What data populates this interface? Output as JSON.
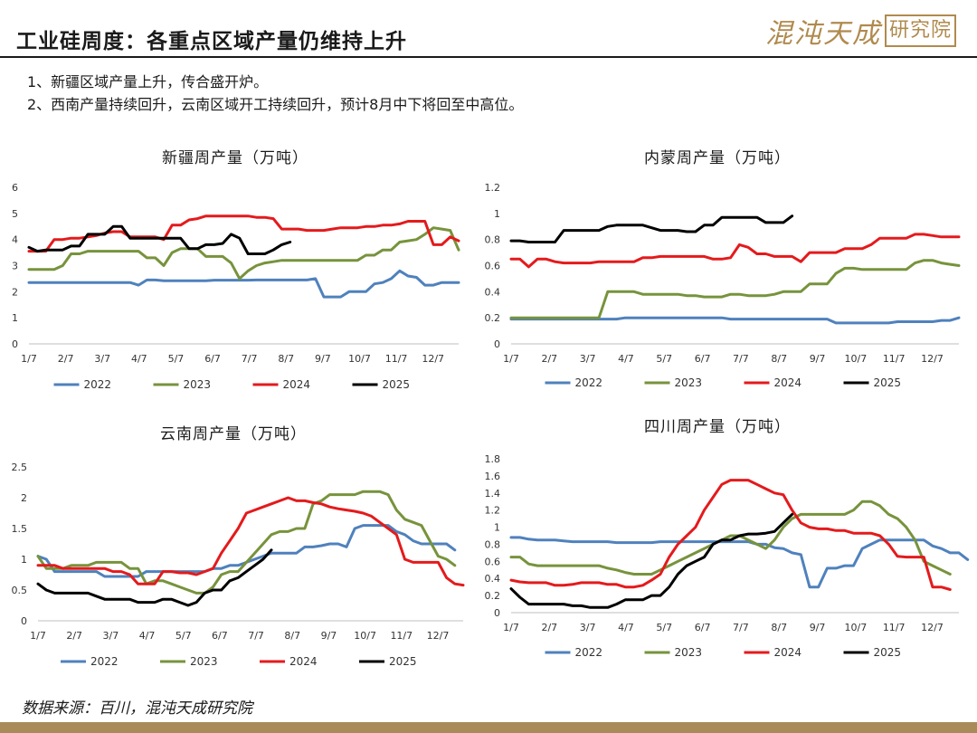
{
  "header": {
    "title": "工业硅周度：各重点区域产量仍维持上升",
    "logo_text": "混沌天成",
    "logo_seal": "研究院"
  },
  "bullets": [
    "1、新疆区域产量上升，传合盛开炉。",
    "2、西南产量持续回升，云南区域开工持续回升，预计8月中下将回至中高位。"
  ],
  "source": "数据来源：百川，混沌天成研究院",
  "colors": {
    "2022": "#4f81bd",
    "2023": "#77933c",
    "2024": "#e41a1c",
    "2025": "#000000"
  },
  "chart_data": [
    {
      "type": "line",
      "title": "新疆周产量（万吨）",
      "x_ticks": [
        "1/7",
        "2/7",
        "3/7",
        "4/7",
        "5/7",
        "6/7",
        "7/7",
        "8/7",
        "9/7",
        "10/7",
        "11/7",
        "12/7"
      ],
      "ylim": [
        0,
        6
      ],
      "y_ticks": [
        "0",
        "1",
        "2",
        "3",
        "4",
        "5",
        "6"
      ],
      "weeks": 52,
      "legend": "bottom",
      "series": [
        {
          "name": "2022",
          "values": [
            2.35,
            2.35,
            2.35,
            2.35,
            2.35,
            2.35,
            2.35,
            2.35,
            2.35,
            2.35,
            2.35,
            2.35,
            2.35,
            2.25,
            2.45,
            2.45,
            2.42,
            2.42,
            2.42,
            2.42,
            2.42,
            2.42,
            2.44,
            2.44,
            2.44,
            2.44,
            2.44,
            2.45,
            2.45,
            2.45,
            2.45,
            2.45,
            2.45,
            2.45,
            2.5,
            1.8,
            1.8,
            1.8,
            2.0,
            2.0,
            2.0,
            2.3,
            2.35,
            2.5,
            2.8,
            2.6,
            2.55,
            2.25,
            2.25,
            2.35,
            2.35,
            2.35
          ]
        },
        {
          "name": "2023",
          "values": [
            2.85,
            2.85,
            2.85,
            2.85,
            3.0,
            3.45,
            3.45,
            3.55,
            3.55,
            3.55,
            3.55,
            3.55,
            3.55,
            3.55,
            3.3,
            3.3,
            3.0,
            3.5,
            3.65,
            3.65,
            3.65,
            3.35,
            3.35,
            3.35,
            3.1,
            2.5,
            2.8,
            3.0,
            3.1,
            3.15,
            3.2,
            3.2,
            3.2,
            3.2,
            3.2,
            3.2,
            3.2,
            3.2,
            3.2,
            3.2,
            3.4,
            3.4,
            3.6,
            3.6,
            3.9,
            3.95,
            4.0,
            4.2,
            4.45,
            4.4,
            4.35,
            3.6
          ]
        },
        {
          "name": "2024",
          "values": [
            3.55,
            3.55,
            3.55,
            4.0,
            4.0,
            4.05,
            4.05,
            4.1,
            4.15,
            4.25,
            4.3,
            4.3,
            4.1,
            4.1,
            4.1,
            4.1,
            4.0,
            4.55,
            4.55,
            4.75,
            4.8,
            4.9,
            4.9,
            4.9,
            4.9,
            4.9,
            4.9,
            4.85,
            4.85,
            4.8,
            4.4,
            4.4,
            4.4,
            4.35,
            4.35,
            4.35,
            4.4,
            4.45,
            4.45,
            4.45,
            4.5,
            4.5,
            4.55,
            4.55,
            4.6,
            4.7,
            4.7,
            4.7,
            3.8,
            3.8,
            4.1,
            3.95
          ]
        },
        {
          "name": "2025",
          "values": [
            3.7,
            3.55,
            3.6,
            3.6,
            3.6,
            3.75,
            3.75,
            4.2,
            4.2,
            4.2,
            4.5,
            4.5,
            4.05,
            4.05,
            4.05,
            4.05,
            4.05,
            4.05,
            4.05,
            3.65,
            3.65,
            3.8,
            3.8,
            3.85,
            4.2,
            4.05,
            3.45,
            3.45,
            3.45,
            3.6,
            3.8,
            3.9
          ]
        }
      ]
    },
    {
      "type": "line",
      "title": "内蒙周产量（万吨）",
      "x_ticks": [
        "1/7",
        "2/7",
        "3/7",
        "4/7",
        "5/7",
        "6/7",
        "7/7",
        "8/7",
        "9/7",
        "10/7",
        "11/7",
        "12/7"
      ],
      "ylim": [
        0,
        1.2
      ],
      "y_ticks": [
        "0",
        "0.2",
        "0.4",
        "0.6",
        "0.8",
        "1",
        "1.2"
      ],
      "weeks": 52,
      "legend": "bottom",
      "series": [
        {
          "name": "2022",
          "values": [
            0.19,
            0.19,
            0.19,
            0.19,
            0.19,
            0.19,
            0.19,
            0.19,
            0.19,
            0.19,
            0.19,
            0.19,
            0.19,
            0.2,
            0.2,
            0.2,
            0.2,
            0.2,
            0.2,
            0.2,
            0.2,
            0.2,
            0.2,
            0.2,
            0.2,
            0.19,
            0.19,
            0.19,
            0.19,
            0.19,
            0.19,
            0.19,
            0.19,
            0.19,
            0.19,
            0.19,
            0.19,
            0.16,
            0.16,
            0.16,
            0.16,
            0.16,
            0.16,
            0.16,
            0.17,
            0.17,
            0.17,
            0.17,
            0.17,
            0.18,
            0.18,
            0.2
          ]
        },
        {
          "name": "2023",
          "values": [
            0.2,
            0.2,
            0.2,
            0.2,
            0.2,
            0.2,
            0.2,
            0.2,
            0.2,
            0.2,
            0.2,
            0.4,
            0.4,
            0.4,
            0.4,
            0.38,
            0.38,
            0.38,
            0.38,
            0.38,
            0.37,
            0.37,
            0.36,
            0.36,
            0.36,
            0.38,
            0.38,
            0.37,
            0.37,
            0.37,
            0.38,
            0.4,
            0.4,
            0.4,
            0.46,
            0.46,
            0.46,
            0.54,
            0.58,
            0.58,
            0.57,
            0.57,
            0.57,
            0.57,
            0.57,
            0.57,
            0.62,
            0.64,
            0.64,
            0.62,
            0.61,
            0.6
          ]
        },
        {
          "name": "2024",
          "values": [
            0.65,
            0.65,
            0.59,
            0.65,
            0.65,
            0.63,
            0.62,
            0.62,
            0.62,
            0.62,
            0.63,
            0.63,
            0.63,
            0.63,
            0.63,
            0.66,
            0.66,
            0.67,
            0.67,
            0.67,
            0.67,
            0.67,
            0.67,
            0.65,
            0.65,
            0.66,
            0.76,
            0.74,
            0.69,
            0.69,
            0.67,
            0.67,
            0.67,
            0.63,
            0.7,
            0.7,
            0.7,
            0.7,
            0.73,
            0.73,
            0.73,
            0.76,
            0.81,
            0.81,
            0.81,
            0.81,
            0.84,
            0.84,
            0.83,
            0.82,
            0.82,
            0.82
          ]
        },
        {
          "name": "2025",
          "values": [
            0.79,
            0.79,
            0.78,
            0.78,
            0.78,
            0.78,
            0.87,
            0.87,
            0.87,
            0.87,
            0.87,
            0.9,
            0.91,
            0.91,
            0.91,
            0.91,
            0.89,
            0.87,
            0.87,
            0.87,
            0.86,
            0.86,
            0.91,
            0.91,
            0.97,
            0.97,
            0.97,
            0.97,
            0.97,
            0.93,
            0.93,
            0.93,
            0.98
          ]
        }
      ]
    },
    {
      "type": "line",
      "title": "云南周产量（万吨）",
      "x_ticks": [
        "1/7",
        "2/7",
        "3/7",
        "4/7",
        "5/7",
        "6/7",
        "7/7",
        "8/7",
        "9/7",
        "10/7",
        "11/7",
        "12/7"
      ],
      "ylim": [
        0,
        2.5
      ],
      "y_ticks": [
        "0",
        "0.5",
        "1",
        "1.5",
        "2",
        "2.5"
      ],
      "weeks": 52,
      "legend": "bottom",
      "series": [
        {
          "name": "2022",
          "values": [
            1.05,
            1.0,
            0.8,
            0.8,
            0.8,
            0.8,
            0.8,
            0.8,
            0.72,
            0.72,
            0.72,
            0.72,
            0.72,
            0.8,
            0.8,
            0.8,
            0.8,
            0.8,
            0.8,
            0.8,
            0.8,
            0.85,
            0.85,
            0.9,
            0.9,
            0.95,
            1.0,
            1.05,
            1.1,
            1.1,
            1.1,
            1.1,
            1.2,
            1.2,
            1.22,
            1.25,
            1.25,
            1.2,
            1.5,
            1.55,
            1.55,
            1.55,
            1.55,
            1.45,
            1.4,
            1.3,
            1.25,
            1.25,
            1.25,
            1.25,
            1.15
          ]
        },
        {
          "name": "2023",
          "values": [
            1.05,
            0.85,
            0.85,
            0.85,
            0.9,
            0.9,
            0.9,
            0.95,
            0.95,
            0.95,
            0.95,
            0.85,
            0.85,
            0.6,
            0.65,
            0.65,
            0.6,
            0.55,
            0.5,
            0.45,
            0.45,
            0.55,
            0.75,
            0.8,
            0.8,
            0.95,
            1.1,
            1.25,
            1.4,
            1.45,
            1.45,
            1.5,
            1.5,
            1.9,
            1.95,
            2.05,
            2.05,
            2.05,
            2.05,
            2.1,
            2.1,
            2.1,
            2.05,
            1.8,
            1.65,
            1.6,
            1.55,
            1.3,
            1.05,
            1.0,
            0.9
          ]
        },
        {
          "name": "2024",
          "values": [
            0.9,
            0.9,
            0.9,
            0.85,
            0.85,
            0.85,
            0.85,
            0.85,
            0.85,
            0.8,
            0.8,
            0.75,
            0.6,
            0.6,
            0.6,
            0.8,
            0.8,
            0.78,
            0.78,
            0.75,
            0.8,
            0.85,
            1.1,
            1.3,
            1.5,
            1.75,
            1.8,
            1.85,
            1.9,
            1.95,
            2.0,
            1.95,
            1.95,
            1.92,
            1.9,
            1.85,
            1.82,
            1.8,
            1.78,
            1.75,
            1.7,
            1.6,
            1.5,
            1.4,
            1.0,
            0.95,
            0.95,
            0.95,
            0.95,
            0.7,
            0.6,
            0.58
          ]
        },
        {
          "name": "2025",
          "values": [
            0.6,
            0.5,
            0.45,
            0.45,
            0.45,
            0.45,
            0.45,
            0.4,
            0.35,
            0.35,
            0.35,
            0.35,
            0.3,
            0.3,
            0.3,
            0.35,
            0.35,
            0.3,
            0.25,
            0.3,
            0.45,
            0.5,
            0.5,
            0.65,
            0.7,
            0.8,
            0.9,
            1.0,
            1.15
          ]
        }
      ]
    },
    {
      "type": "line",
      "title": "四川周产量（万吨）",
      "x_ticks": [
        "1/7",
        "2/7",
        "3/7",
        "4/7",
        "5/7",
        "6/7",
        "7/7",
        "8/7",
        "9/7",
        "10/7",
        "11/7",
        "12/7"
      ],
      "ylim": [
        0,
        1.8
      ],
      "y_ticks": [
        "0",
        "0.2",
        "0.4",
        "0.6",
        "0.8",
        "1",
        "1.2",
        "1.4",
        "1.6",
        "1.8"
      ],
      "weeks": 52,
      "legend": "bottom",
      "series": [
        {
          "name": "2022",
          "values": [
            0.88,
            0.88,
            0.86,
            0.85,
            0.85,
            0.85,
            0.84,
            0.83,
            0.83,
            0.83,
            0.83,
            0.83,
            0.82,
            0.82,
            0.82,
            0.82,
            0.82,
            0.83,
            0.83,
            0.83,
            0.83,
            0.83,
            0.83,
            0.83,
            0.83,
            0.83,
            0.83,
            0.83,
            0.8,
            0.8,
            0.76,
            0.75,
            0.7,
            0.68,
            0.3,
            0.3,
            0.52,
            0.52,
            0.55,
            0.55,
            0.75,
            0.8,
            0.85,
            0.85,
            0.85,
            0.85,
            0.85,
            0.85,
            0.78,
            0.75,
            0.7,
            0.7,
            0.62
          ]
        },
        {
          "name": "2023",
          "values": [
            0.65,
            0.65,
            0.57,
            0.55,
            0.55,
            0.55,
            0.55,
            0.55,
            0.55,
            0.55,
            0.55,
            0.52,
            0.5,
            0.47,
            0.45,
            0.45,
            0.45,
            0.5,
            0.55,
            0.6,
            0.65,
            0.7,
            0.75,
            0.8,
            0.85,
            0.9,
            0.9,
            0.85,
            0.8,
            0.75,
            0.85,
            1.0,
            1.1,
            1.15,
            1.15,
            1.15,
            1.15,
            1.15,
            1.15,
            1.2,
            1.3,
            1.3,
            1.25,
            1.15,
            1.1,
            1.0,
            0.85,
            0.6,
            0.55,
            0.5,
            0.45
          ]
        },
        {
          "name": "2024",
          "values": [
            0.38,
            0.36,
            0.35,
            0.35,
            0.35,
            0.32,
            0.32,
            0.33,
            0.35,
            0.35,
            0.35,
            0.33,
            0.33,
            0.3,
            0.3,
            0.32,
            0.38,
            0.45,
            0.65,
            0.8,
            0.9,
            1.0,
            1.2,
            1.35,
            1.5,
            1.55,
            1.55,
            1.55,
            1.5,
            1.45,
            1.4,
            1.38,
            1.2,
            1.05,
            1.0,
            0.98,
            0.98,
            0.96,
            0.96,
            0.93,
            0.93,
            0.93,
            0.9,
            0.8,
            0.66,
            0.65,
            0.65,
            0.65,
            0.3,
            0.3,
            0.27
          ]
        },
        {
          "name": "2025",
          "values": [
            0.28,
            0.18,
            0.1,
            0.1,
            0.1,
            0.1,
            0.1,
            0.08,
            0.08,
            0.06,
            0.06,
            0.06,
            0.1,
            0.15,
            0.15,
            0.15,
            0.2,
            0.2,
            0.3,
            0.45,
            0.55,
            0.6,
            0.65,
            0.8,
            0.85,
            0.85,
            0.9,
            0.92,
            0.92,
            0.93,
            0.95,
            1.05,
            1.15
          ]
        }
      ]
    }
  ]
}
